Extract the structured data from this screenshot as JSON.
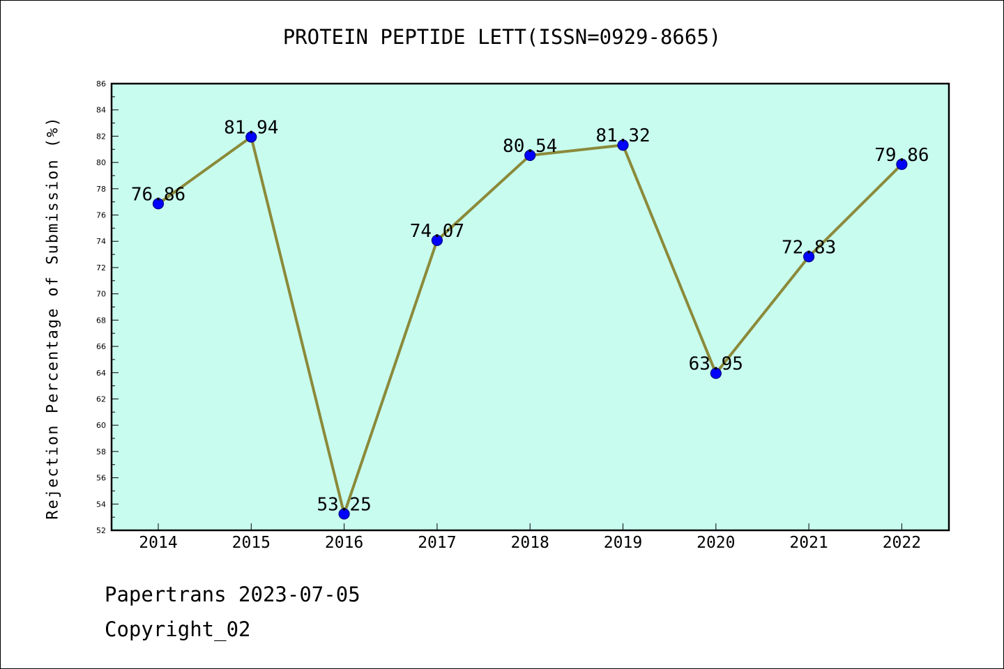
{
  "chart_data": {
    "type": "line",
    "title": "PROTEIN PEPTIDE LETT(ISSN=0929-8665)",
    "xlabel": "",
    "ylabel": "Rejection Percentage of Submission (%)",
    "categories": [
      "2014",
      "2015",
      "2016",
      "2017",
      "2018",
      "2019",
      "2020",
      "2021",
      "2022"
    ],
    "series": [
      {
        "values": [
          76.86,
          81.94,
          53.25,
          74.07,
          80.54,
          81.32,
          63.95,
          72.83,
          79.86
        ],
        "labels": [
          "76.86",
          "81.94",
          "53.25",
          "74.07",
          "80.54",
          "81.32",
          "63.95",
          "72.83",
          "79.86"
        ]
      }
    ],
    "ylim": [
      52,
      86
    ],
    "yticks": [
      52,
      54,
      56,
      58,
      60,
      62,
      64,
      66,
      68,
      70,
      72,
      74,
      76,
      78,
      80,
      82,
      84,
      86
    ],
    "grid": false,
    "colors": {
      "plot_background": "#c8fcef",
      "line": "#8b8a3a",
      "marker": "#0000ff",
      "marker_edge": "#000080"
    }
  },
  "footer": {
    "line1": "Papertrans 2023-07-05",
    "line2": "Copyright_02"
  }
}
